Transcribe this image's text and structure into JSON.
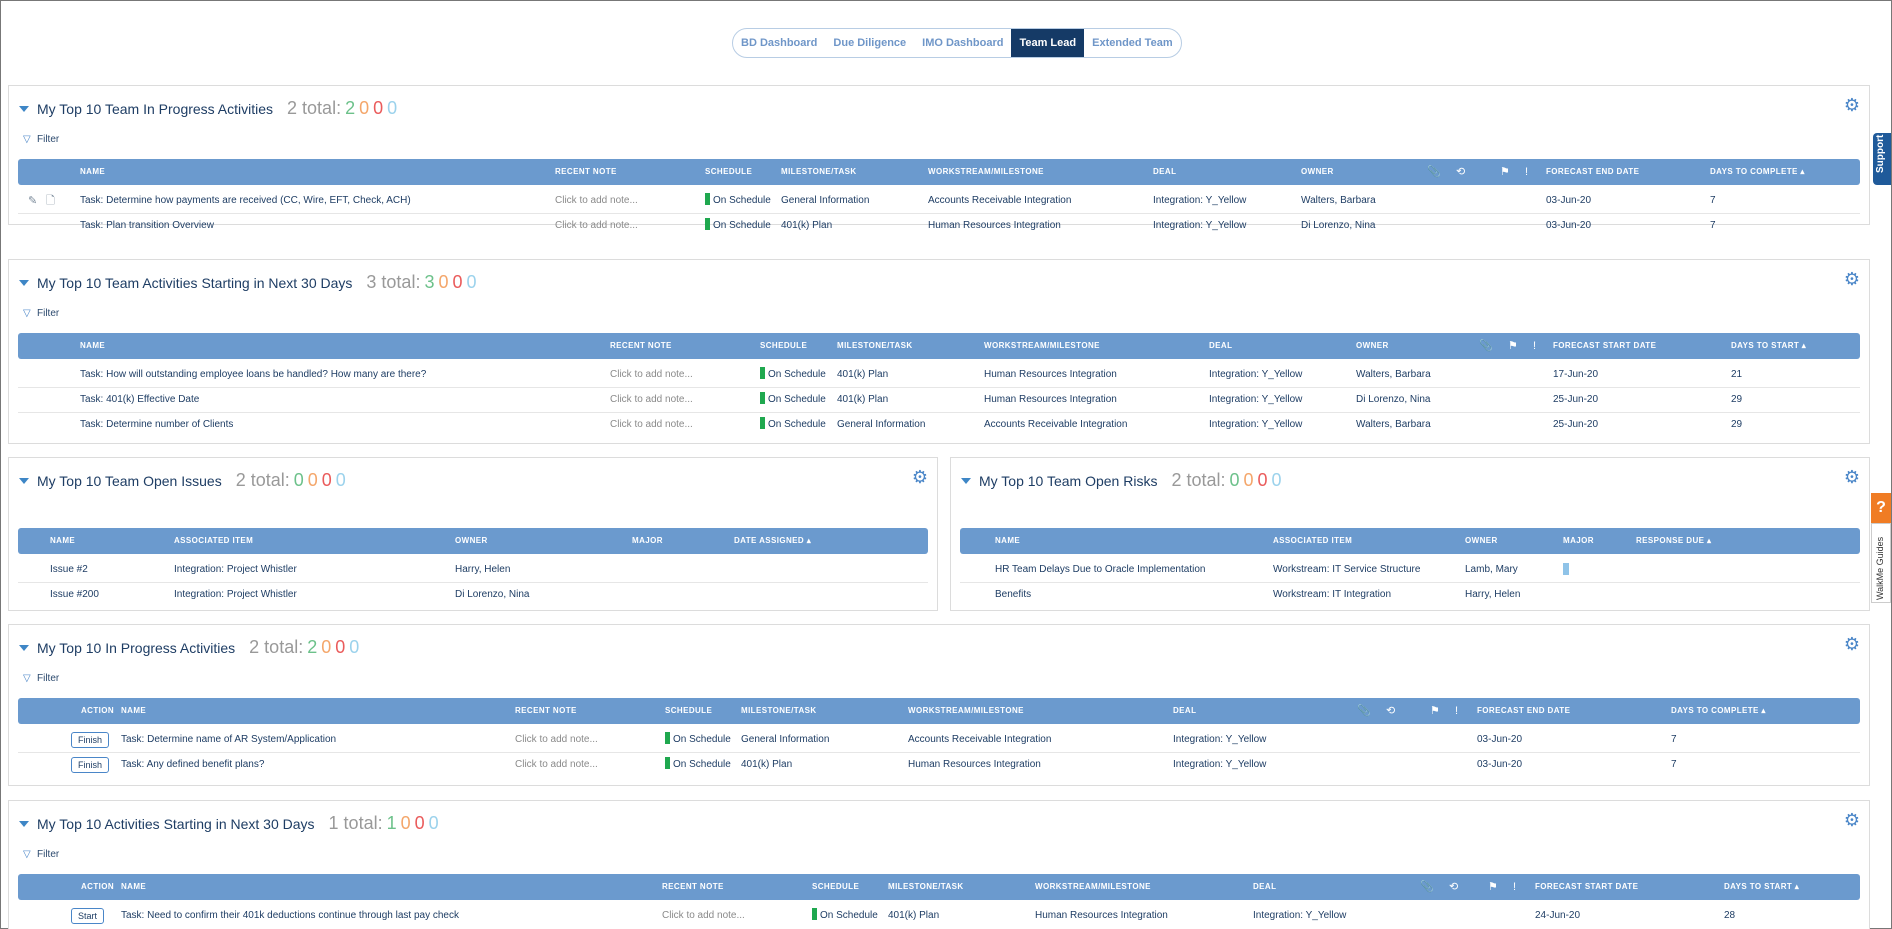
{
  "nav": {
    "tabs": [
      "BD Dashboard",
      "Due Diligence",
      "IMO Dashboard",
      "Team Lead",
      "Extended Team"
    ],
    "active": "Team Lead"
  },
  "filter_label": "Filter",
  "note_placeholder": "Click to add note...",
  "panel1": {
    "title": "My Top 10 Team In Progress Activities",
    "total": "2 total:",
    "counts": [
      "2",
      "0",
      "0",
      "0"
    ],
    "headers": [
      "NAME",
      "RECENT NOTE",
      "SCHEDULE",
      "MILESTONE/TASK",
      "WORKSTREAM/MILESTONE",
      "DEAL",
      "OWNER",
      "FORECAST END DATE",
      "DAYS TO COMPLETE ▴"
    ],
    "rows": [
      {
        "name": "Task: Determine how payments are received (CC, Wire, EFT, Check, ACH)",
        "note": "Click to add note...",
        "schedule": "On Schedule",
        "milestone": "General Information",
        "workstream": "Accounts Receivable Integration",
        "deal": "Integration: Y_Yellow",
        "owner": "Walters, Barbara",
        "date": "03-Jun-20",
        "days": "7"
      },
      {
        "name": "Task: Plan transition Overview",
        "note": "Click to add note...",
        "schedule": "On Schedule",
        "milestone": "401(k) Plan",
        "workstream": "Human Resources Integration",
        "deal": "Integration: Y_Yellow",
        "owner": "Di Lorenzo, Nina",
        "date": "03-Jun-20",
        "days": "7"
      }
    ]
  },
  "panel2": {
    "title": "My Top 10 Team Activities Starting in Next 30 Days",
    "total": "3 total:",
    "counts": [
      "3",
      "0",
      "0",
      "0"
    ],
    "headers": [
      "NAME",
      "RECENT NOTE",
      "SCHEDULE",
      "MILESTONE/TASK",
      "WORKSTREAM/MILESTONE",
      "DEAL",
      "OWNER",
      "FORECAST START DATE",
      "DAYS TO START ▴"
    ],
    "rows": [
      {
        "name": "Task: How will outstanding employee loans be handled? How many are there?",
        "note": "Click to add note...",
        "schedule": "On Schedule",
        "milestone": "401(k) Plan",
        "workstream": "Human Resources Integration",
        "deal": "Integration: Y_Yellow",
        "owner": "Walters, Barbara",
        "date": "17-Jun-20",
        "days": "21"
      },
      {
        "name": "Task: 401(k) Effective Date",
        "note": "Click to add note...",
        "schedule": "On Schedule",
        "milestone": "401(k) Plan",
        "workstream": "Human Resources Integration",
        "deal": "Integration: Y_Yellow",
        "owner": "Di Lorenzo, Nina",
        "date": "25-Jun-20",
        "days": "29"
      },
      {
        "name": "Task: Determine number of Clients",
        "note": "Click to add note...",
        "schedule": "On Schedule",
        "milestone": "General Information",
        "workstream": "Accounts Receivable Integration",
        "deal": "Integration: Y_Yellow",
        "owner": "Walters, Barbara",
        "date": "25-Jun-20",
        "days": "29"
      }
    ]
  },
  "panel3": {
    "title": "My Top 10 Team Open Issues",
    "total": "2 total:",
    "counts": [
      "0",
      "0",
      "0",
      "0"
    ],
    "headers": [
      "NAME",
      "ASSOCIATED ITEM",
      "OWNER",
      "MAJOR",
      "DATE ASSIGNED ▴"
    ],
    "rows": [
      {
        "name": "Issue #2",
        "item": "Integration: Project Whistler",
        "owner": "Harry, Helen"
      },
      {
        "name": "Issue #200",
        "item": "Integration: Project Whistler",
        "owner": "Di Lorenzo, Nina"
      }
    ]
  },
  "panel4": {
    "title": "My Top 10 Team Open Risks",
    "total": "2 total:",
    "counts": [
      "0",
      "0",
      "0",
      "0"
    ],
    "headers": [
      "NAME",
      "ASSOCIATED ITEM",
      "OWNER",
      "MAJOR",
      "RESPONSE DUE ▴"
    ],
    "rows": [
      {
        "name": "HR Team Delays Due to Oracle Implementation",
        "item": "Workstream: IT Service Structure",
        "owner": "Lamb, Mary"
      },
      {
        "name": "Benefits",
        "item": "Workstream: IT Integration",
        "owner": "Harry, Helen"
      }
    ]
  },
  "panel5": {
    "title": "My Top 10 In Progress Activities",
    "total": "2 total:",
    "counts": [
      "2",
      "0",
      "0",
      "0"
    ],
    "headers": [
      "ACTION",
      "NAME",
      "RECENT NOTE",
      "SCHEDULE",
      "MILESTONE/TASK",
      "WORKSTREAM/MILESTONE",
      "DEAL",
      "FORECAST END DATE",
      "DAYS TO COMPLETE ▴"
    ],
    "rows": [
      {
        "action": "Finish",
        "name": "Task: Determine name of AR System/Application",
        "note": "Click to add note...",
        "schedule": "On Schedule",
        "milestone": "General Information",
        "workstream": "Accounts Receivable Integration",
        "deal": "Integration: Y_Yellow",
        "date": "03-Jun-20",
        "days": "7"
      },
      {
        "action": "Finish",
        "name": "Task: Any defined benefit plans?",
        "note": "Click to add note...",
        "schedule": "On Schedule",
        "milestone": "401(k) Plan",
        "workstream": "Human Resources Integration",
        "deal": "Integration: Y_Yellow",
        "date": "03-Jun-20",
        "days": "7"
      }
    ]
  },
  "panel6": {
    "title": "My Top 10 Activities Starting in Next 30 Days",
    "total": "1 total:",
    "counts": [
      "1",
      "0",
      "0",
      "0"
    ],
    "headers": [
      "ACTION",
      "NAME",
      "RECENT NOTE",
      "SCHEDULE",
      "MILESTONE/TASK",
      "WORKSTREAM/MILESTONE",
      "DEAL",
      "FORECAST START DATE",
      "DAYS TO START ▴"
    ],
    "rows": [
      {
        "action": "Start",
        "name": "Task: Need to confirm their 401k deductions continue through last pay check",
        "note": "Click to add note...",
        "schedule": "On Schedule",
        "milestone": "401(k) Plan",
        "workstream": "Human Resources Integration",
        "deal": "Integration: Y_Yellow",
        "date": "24-Jun-20",
        "days": "28"
      }
    ]
  },
  "side": {
    "support": "Support",
    "help": "?",
    "walkme": "WalkMe Guides"
  }
}
